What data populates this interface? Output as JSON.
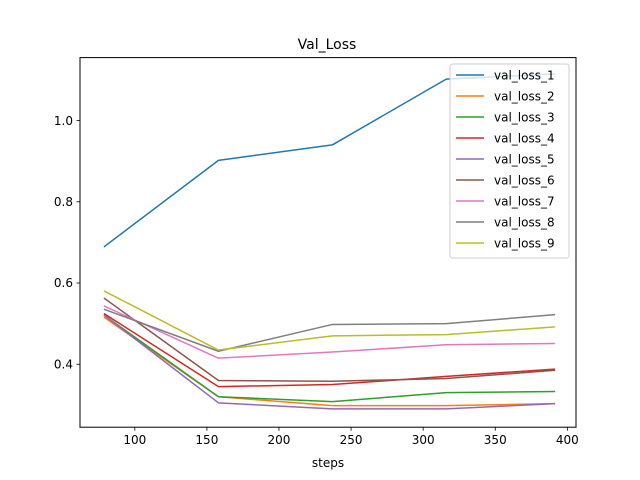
{
  "chart_data": {
    "type": "line",
    "title": "Val_Loss",
    "xlabel": "steps",
    "ylabel": "",
    "xlim": [
      62,
      406
    ],
    "ylim": [
      0.245,
      1.155
    ],
    "xticks": [
      100,
      150,
      200,
      250,
      300,
      350,
      400
    ],
    "yticks": [
      0.4,
      0.6,
      0.8,
      1.0
    ],
    "ytick_labels": [
      "0.4",
      "0.6",
      "0.8",
      "1.0"
    ],
    "grid": false,
    "legend_position": "top-right",
    "x": [
      79,
      158,
      237,
      316,
      391
    ],
    "series": [
      {
        "name": "val_loss_1",
        "color": "#1f77b4",
        "values": [
          0.69,
          0.902,
          0.94,
          1.102,
          1.115
        ]
      },
      {
        "name": "val_loss_2",
        "color": "#ff7f0e",
        "values": [
          0.515,
          0.32,
          0.298,
          0.298,
          0.303
        ]
      },
      {
        "name": "val_loss_3",
        "color": "#2ca02c",
        "values": [
          0.52,
          0.32,
          0.308,
          0.33,
          0.333
        ]
      },
      {
        "name": "val_loss_4",
        "color": "#d62728",
        "values": [
          0.524,
          0.345,
          0.35,
          0.37,
          0.388
        ]
      },
      {
        "name": "val_loss_5",
        "color": "#9467bd",
        "values": [
          0.52,
          0.305,
          0.29,
          0.29,
          0.303
        ]
      },
      {
        "name": "val_loss_6",
        "color": "#8c564b",
        "values": [
          0.562,
          0.36,
          0.358,
          0.365,
          0.385
        ]
      },
      {
        "name": "val_loss_7",
        "color": "#e377c2",
        "values": [
          0.543,
          0.415,
          0.43,
          0.448,
          0.451
        ]
      },
      {
        "name": "val_loss_8",
        "color": "#7f7f7f",
        "values": [
          0.535,
          0.432,
          0.498,
          0.5,
          0.522
        ]
      },
      {
        "name": "val_loss_9",
        "color": "#bcbd22",
        "values": [
          0.58,
          0.435,
          0.47,
          0.473,
          0.492
        ]
      }
    ]
  }
}
